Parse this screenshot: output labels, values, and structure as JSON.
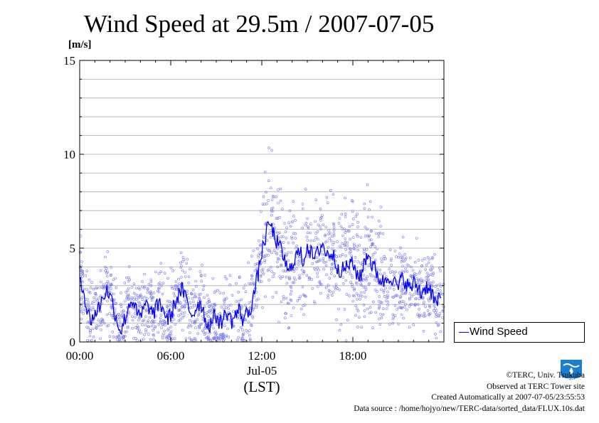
{
  "chart_data": {
    "type": "scatter",
    "title": "Wind Speed at 29.5m / 2007-07-05",
    "ylabel": "[m/s]",
    "xlabel": "(LST)",
    "date_label": "Jul-05",
    "x_ticks": [
      "00:00",
      "06:00",
      "12:00",
      "18:00"
    ],
    "y_ticks": [
      "0",
      "5",
      "10",
      "15"
    ],
    "ylim": [
      0,
      15
    ],
    "xlim_hours": [
      0,
      24
    ],
    "grid": true,
    "legend": {
      "label": "Wind Speed",
      "position": "right-bottom"
    },
    "series": [
      {
        "name": "Wind Speed",
        "color": "#0000ff",
        "style": "line (smoothed) with scatter of 10-s samples",
        "x_hours": [
          0.0,
          0.25,
          0.5,
          0.75,
          1.0,
          1.25,
          1.5,
          1.75,
          2.0,
          2.25,
          2.5,
          2.75,
          3.0,
          3.25,
          3.5,
          3.75,
          4.0,
          4.25,
          4.5,
          4.75,
          5.0,
          5.25,
          5.5,
          5.75,
          6.0,
          6.25,
          6.5,
          6.75,
          7.0,
          7.25,
          7.5,
          7.75,
          8.0,
          8.25,
          8.5,
          8.75,
          9.0,
          9.25,
          9.5,
          9.75,
          10.0,
          10.25,
          10.5,
          10.75,
          11.0,
          11.25,
          11.5,
          11.75,
          12.0,
          12.25,
          12.5,
          12.75,
          13.0,
          13.25,
          13.5,
          13.75,
          14.0,
          14.25,
          14.5,
          14.75,
          15.0,
          15.25,
          15.5,
          15.75,
          16.0,
          16.25,
          16.5,
          16.75,
          17.0,
          17.25,
          17.5,
          17.75,
          18.0,
          18.25,
          18.5,
          18.75,
          19.0,
          19.25,
          19.5,
          19.75,
          20.0,
          20.25,
          20.5,
          20.75,
          21.0,
          21.25,
          21.5,
          21.75,
          22.0,
          22.25,
          22.5,
          22.75,
          23.0,
          23.25,
          23.5,
          23.75
        ],
        "values": [
          3.6,
          2.8,
          1.5,
          1.2,
          1.5,
          1.8,
          2.3,
          2.8,
          2.5,
          1.8,
          1.0,
          0.6,
          1.3,
          2.0,
          2.3,
          1.5,
          1.3,
          1.8,
          2.0,
          1.5,
          1.7,
          2.1,
          1.8,
          1.2,
          1.4,
          2.0,
          2.5,
          2.8,
          2.3,
          1.6,
          1.5,
          2.0,
          2.1,
          1.3,
          0.8,
          1.2,
          1.4,
          1.0,
          1.3,
          1.6,
          1.1,
          1.4,
          1.7,
          1.2,
          1.5,
          1.8,
          2.6,
          3.6,
          4.8,
          5.6,
          6.4,
          5.8,
          5.3,
          4.9,
          4.4,
          3.6,
          4.2,
          4.6,
          4.8,
          4.3,
          5.2,
          4.7,
          4.4,
          4.9,
          5.3,
          4.6,
          4.8,
          4.5,
          4.0,
          3.8,
          3.9,
          4.2,
          4.1,
          3.7,
          3.4,
          4.3,
          4.8,
          4.1,
          3.8,
          3.4,
          3.2,
          3.4,
          3.6,
          3.1,
          2.9,
          3.4,
          3.2,
          2.8,
          3.1,
          3.0,
          2.6,
          2.9,
          3.0,
          2.5,
          2.0,
          2.3
        ]
      }
    ]
  },
  "credits": {
    "line1": "©TERC, Univ. Tsukuba",
    "line2": "Observed at TERC Tower site",
    "line3": "Created Automatically at 2007-07-05/23:55:53",
    "line4": "Data source : /home/hojyo/new/TERC-data/sorted_data/FLUX.10s.dat"
  },
  "logo": {
    "text": "TERC",
    "color": "#1a7fd0"
  }
}
